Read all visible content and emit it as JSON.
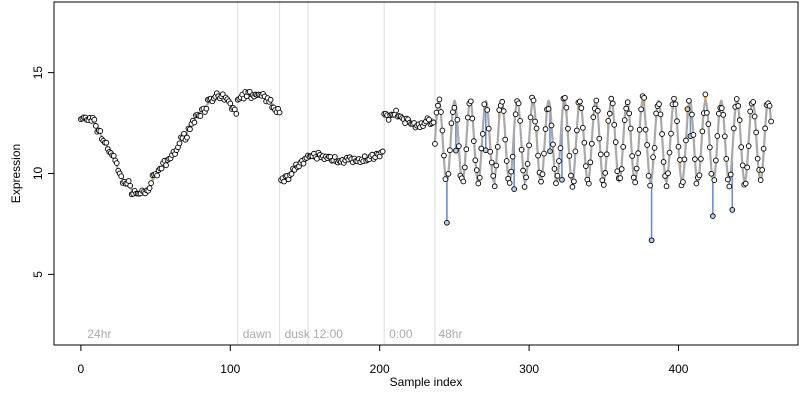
{
  "chart_data": {
    "type": "line",
    "title": "",
    "xlabel": "Sample index",
    "ylabel": "Expression",
    "xlim": [
      -18,
      480
    ],
    "ylim": [
      1.5,
      18.5
    ],
    "xticks": [
      0,
      100,
      200,
      300,
      400
    ],
    "yticks": [
      5,
      10,
      15
    ],
    "grid": false,
    "colors": {
      "curve": "#a9a9a9",
      "residual_up": "#ff9900",
      "residual_down": "#6a8fd6",
      "point_high": "#f5c17a",
      "point_low": "#b8cef0",
      "point_mid": "#ffffff",
      "vline": "#dddddd",
      "annotation": "#aaaaaa"
    },
    "annotations": [
      {
        "x": 3,
        "label": "24hr"
      },
      {
        "x": 107,
        "label": "dawn"
      },
      {
        "x": 135,
        "label": "dusk"
      },
      {
        "x": 154,
        "label": "12:00"
      },
      {
        "x": 205,
        "label": "0:00"
      },
      {
        "x": 238,
        "label": "48hr"
      }
    ],
    "vlines": [
      105,
      133,
      152,
      203,
      237
    ],
    "segments": [
      {
        "x_start": 0,
        "x_end": 104,
        "curve": [
          [
            0,
            12.75
          ],
          [
            8,
            12.6
          ],
          [
            12,
            12.1
          ],
          [
            18,
            11.3
          ],
          [
            23,
            10.6
          ],
          [
            27,
            9.8
          ],
          [
            30,
            9.55
          ],
          [
            33,
            9.3
          ],
          [
            36,
            9.05
          ],
          [
            40,
            9.0
          ],
          [
            45,
            9.2
          ],
          [
            49,
            9.8
          ],
          [
            53,
            10.2
          ],
          [
            58,
            10.6
          ],
          [
            63,
            11.1
          ],
          [
            68,
            11.7
          ],
          [
            73,
            12.3
          ],
          [
            78,
            12.9
          ],
          [
            83,
            13.3
          ],
          [
            87,
            13.6
          ],
          [
            92,
            13.75
          ],
          [
            97,
            13.7
          ],
          [
            101,
            13.3
          ],
          [
            104,
            13.0
          ]
        ]
      },
      {
        "x_start": 105,
        "x_end": 133,
        "curve": [
          [
            105,
            13.75
          ],
          [
            110,
            13.9
          ],
          [
            116,
            13.9
          ],
          [
            121,
            13.8
          ],
          [
            126,
            13.6
          ],
          [
            130,
            13.3
          ],
          [
            133,
            13.0
          ]
        ]
      },
      {
        "x_start": 134,
        "x_end": 202,
        "curve": [
          [
            134,
            9.5
          ],
          [
            138,
            9.9
          ],
          [
            142,
            10.2
          ],
          [
            147,
            10.5
          ],
          [
            152,
            10.7
          ],
          [
            157,
            10.9
          ],
          [
            162,
            10.8
          ],
          [
            168,
            10.75
          ],
          [
            174,
            10.7
          ],
          [
            180,
            10.65
          ],
          [
            186,
            10.6
          ],
          [
            192,
            10.65
          ],
          [
            197,
            10.9
          ],
          [
            202,
            11.1
          ]
        ]
      },
      {
        "x_start": 203,
        "x_end": 236,
        "curve": [
          [
            203,
            12.75
          ],
          [
            208,
            13.0
          ],
          [
            213,
            12.85
          ],
          [
            218,
            12.6
          ],
          [
            223,
            12.4
          ],
          [
            227,
            12.4
          ],
          [
            231,
            12.55
          ],
          [
            236,
            12.7
          ]
        ]
      },
      {
        "x_start": 237,
        "x_end": 462,
        "oscillation": {
          "center": 11.6,
          "amplitude": 2.0,
          "period": 10.5,
          "phase": 0
        }
      }
    ]
  }
}
